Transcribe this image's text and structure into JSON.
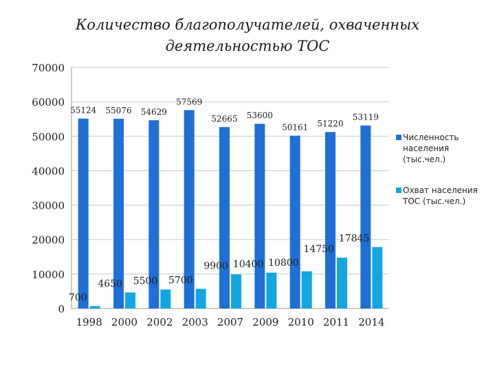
{
  "chart_data": {
    "type": "bar",
    "title": "Количество благополучателей, охваченных деятельностью ТОС",
    "title_lines": [
      "Количество благополучателей, охваченных",
      "деятельностью ТОС"
    ],
    "categories": [
      "1998",
      "2000",
      "2002",
      "2003",
      "2007",
      "2009",
      "2010",
      "2011",
      "2014"
    ],
    "series": [
      {
        "name": "Численность населения (тыс.чел.)",
        "name_lines": [
          "Численность",
          "населения",
          "(тыс.чел.)"
        ],
        "color": "#1f6fd6",
        "values": [
          55124,
          55076,
          54629,
          57569,
          52665,
          53600,
          50161,
          51220,
          53119
        ]
      },
      {
        "name": "Охват населения ТОС (тыс.чел.)",
        "name_lines": [
          "Охват населения",
          "ТОС (тыс.чел.)"
        ],
        "color": "#12a6e2",
        "values": [
          700,
          4650,
          5500,
          5700,
          9900,
          10400,
          10800,
          14750,
          17845
        ]
      }
    ],
    "ylim": [
      0,
      70000
    ],
    "yticks": [
      "0",
      "10000",
      "20000",
      "30000",
      "40000",
      "50000",
      "60000",
      "70000"
    ],
    "grid": true,
    "legend_position": "right",
    "xlabel": "",
    "ylabel": ""
  }
}
